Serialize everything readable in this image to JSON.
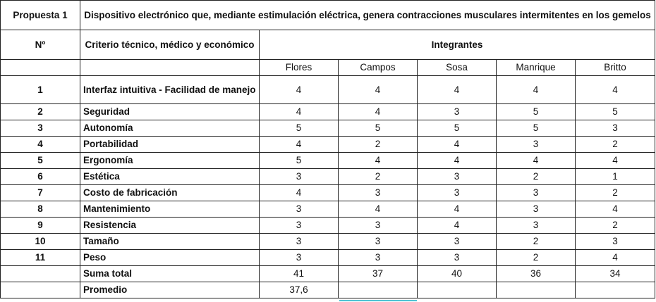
{
  "header": {
    "propuesta_label": "Propuesta 1",
    "description": "Dispositivo electrónico  que, mediante estimulación eléctrica, genera contracciones musculares intermitentes en los gemelos",
    "number_label": "Nº",
    "criteria_label": "Criterio técnico, médico y económico",
    "members_label": "Integrantes"
  },
  "members": [
    "Flores",
    "Campos",
    "Sosa",
    "Manrique",
    "Britto"
  ],
  "rows": [
    {
      "n": "1",
      "criterion": "Interfaz intuitiva - Facilidad de manejo",
      "scores": [
        "4",
        "4",
        "4",
        "4",
        "4"
      ]
    },
    {
      "n": "2",
      "criterion": "Seguridad",
      "scores": [
        "4",
        "4",
        "3",
        "5",
        "5"
      ]
    },
    {
      "n": "3",
      "criterion": "Autonomía",
      "scores": [
        "5",
        "5",
        "5",
        "5",
        "3"
      ]
    },
    {
      "n": "4",
      "criterion": "Portabilidad",
      "scores": [
        "4",
        "2",
        "4",
        "3",
        "2"
      ]
    },
    {
      "n": "5",
      "criterion": "Ergonomía",
      "scores": [
        "5",
        "4",
        "4",
        "4",
        "4"
      ]
    },
    {
      "n": "6",
      "criterion": "Estética",
      "scores": [
        "3",
        "2",
        "3",
        "2",
        "1"
      ]
    },
    {
      "n": "7",
      "criterion": "Costo de fabricación",
      "scores": [
        "4",
        "3",
        "3",
        "3",
        "2"
      ]
    },
    {
      "n": "8",
      "criterion": "Mantenimiento",
      "scores": [
        "3",
        "4",
        "4",
        "3",
        "4"
      ]
    },
    {
      "n": "9",
      "criterion": "Resistencia",
      "scores": [
        "3",
        "3",
        "4",
        "3",
        "2"
      ]
    },
    {
      "n": "10",
      "criterion": "Tamaño",
      "scores": [
        "3",
        "3",
        "3",
        "2",
        "3"
      ]
    },
    {
      "n": "11",
      "criterion": "Peso",
      "scores": [
        "3",
        "3",
        "3",
        "2",
        "4"
      ]
    }
  ],
  "totals": {
    "label": "Suma total",
    "values": [
      "41",
      "37",
      "40",
      "36",
      "34"
    ]
  },
  "average": {
    "label": "Promedio",
    "value": "37,6"
  }
}
